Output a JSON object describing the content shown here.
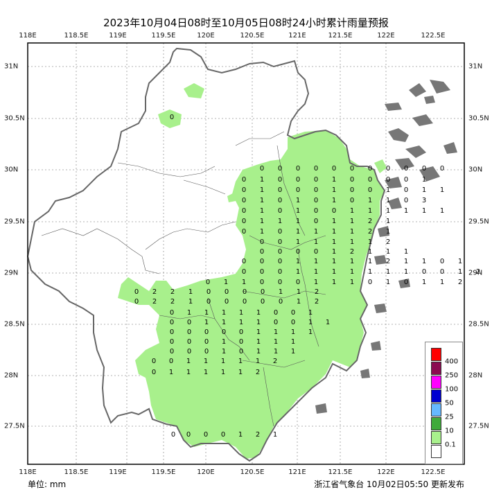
{
  "title": "2023年10月04日08时至10月05日08时24小时累计雨量预报",
  "lon_labels": [
    "118E",
    "118.5E",
    "119E",
    "119.5E",
    "120E",
    "120.5E",
    "121E",
    "121.5E",
    "122E",
    "122.5E"
  ],
  "lat_labels": [
    "31N",
    "30.5N",
    "30N",
    "29.5N",
    "29N",
    "28.5N",
    "28N",
    "27.5N"
  ],
  "unit_label": "单位: mm",
  "issuer": "浙江省气象台 10月02日05:50 更新发布",
  "legend": [
    {
      "label": "400",
      "color": "#ff0000"
    },
    {
      "label": "250",
      "color": "#8b0a50"
    },
    {
      "label": "100",
      "color": "#ff00ff"
    },
    {
      "label": "50",
      "color": "#0000d0"
    },
    {
      "label": "25",
      "color": "#66b8ff"
    },
    {
      "label": "10",
      "color": "#3faa3a"
    },
    {
      "label": "0.1",
      "color": "#a8f08c"
    },
    {
      "label": "",
      "color": "#ffffff"
    }
  ],
  "rain_color": "#a8f08c",
  "grid_values": [
    [
      0
    ],
    [
      0,
      0,
      0,
      0,
      0,
      0,
      0,
      0,
      0,
      0,
      0
    ],
    [
      0,
      1,
      0,
      0,
      0,
      1,
      0,
      0,
      0,
      0,
      1
    ],
    [
      0,
      1,
      0,
      0,
      0,
      1,
      0,
      0,
      1,
      0,
      1,
      1
    ],
    [
      0,
      1,
      0,
      1,
      0,
      1,
      0,
      1,
      1,
      0,
      3
    ],
    [
      0,
      1,
      0,
      1,
      0,
      0,
      1,
      1,
      1,
      1,
      1,
      1
    ],
    [
      0,
      1,
      1,
      1,
      0,
      1,
      1,
      2,
      1
    ],
    [
      0,
      1,
      0,
      1,
      1,
      1,
      1,
      2,
      1
    ],
    [
      0,
      0,
      1,
      1,
      1,
      1,
      1,
      2
    ],
    [
      0,
      0,
      0,
      0,
      1,
      2,
      1,
      1,
      1
    ],
    [
      0,
      0,
      0,
      1,
      1,
      1,
      1,
      1,
      2,
      1,
      1,
      0,
      1
    ],
    [
      0,
      0,
      0,
      1,
      1,
      1,
      1,
      1,
      1,
      1,
      0,
      0,
      1,
      2
    ],
    [
      0,
      1,
      1,
      0,
      0,
      0,
      1,
      1,
      1,
      0,
      1,
      0,
      1,
      1,
      2
    ],
    [
      0,
      2,
      2,
      1,
      0,
      0,
      0,
      0,
      1,
      1,
      2
    ],
    [
      0,
      2,
      2,
      1,
      0,
      0,
      0,
      0,
      0,
      1,
      2
    ],
    [
      0,
      1,
      1,
      1,
      1,
      1,
      0,
      0,
      1
    ],
    [
      0,
      0,
      1,
      1,
      1,
      1,
      0,
      0,
      1,
      1
    ],
    [
      0,
      0,
      0,
      0,
      0,
      1,
      1,
      1,
      1
    ],
    [
      0,
      0,
      0,
      1,
      0,
      1,
      1,
      1
    ],
    [
      0,
      0,
      0,
      1,
      0,
      1,
      1,
      1
    ],
    [
      0,
      0,
      1,
      1,
      1,
      1,
      1,
      2
    ],
    [
      0,
      1,
      1,
      1,
      1,
      1,
      2
    ],
    [
      0,
      0,
      0,
      1,
      2,
      1
    ],
    [
      0
    ]
  ]
}
